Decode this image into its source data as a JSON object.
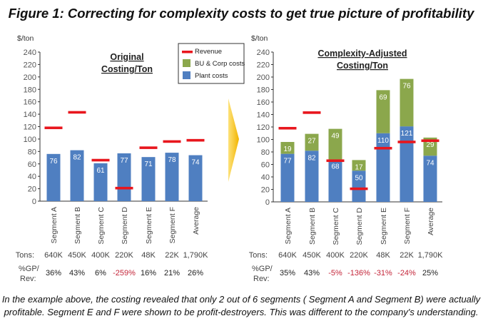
{
  "title": "Figure 1: Correcting for complexity costs to get true picture of profitability",
  "caption": [
    "In the example above, the costing revealed that only 2 out of 6 segments ( Segment A and Segment B) were actually",
    "profitable. Segment E and F were shown to be profit-destroyers. This was different to the company's understanding."
  ],
  "legend": {
    "revenue": "Revenue",
    "bu_corp": "BU & Corp costs",
    "plant": "Plant costs"
  },
  "row_labels": {
    "tons": "Tons:",
    "gp_line1": "%GP/",
    "gp_line2": "Rev:"
  },
  "colors": {
    "plant": "#4f7fc1",
    "bu_corp": "#8ba74c",
    "revenue": "#e8161d",
    "negative": "#c4263a",
    "arrow": "#f5b800"
  },
  "chart_data": [
    {
      "type": "bar",
      "title_lines": [
        "Original",
        "Costing/Ton"
      ],
      "ylabel": "$/ton",
      "ylim": [
        0,
        240
      ],
      "yticks": [
        "0",
        "20",
        "40",
        "60",
        "80",
        "100",
        "120",
        "140",
        "160",
        "180",
        "200",
        "220",
        "240"
      ],
      "categories": [
        "Segment A",
        "Segment B",
        "Segment C",
        "Segment D",
        "Segment E",
        "Segment F",
        "Average"
      ],
      "series": [
        {
          "name": "Plant costs",
          "values": [
            76,
            82,
            61,
            77,
            71,
            78,
            74
          ]
        },
        {
          "name": "Revenue",
          "values": [
            118,
            143,
            66,
            21,
            86,
            96,
            98
          ]
        }
      ],
      "value_labels": {
        "plant": [
          "76",
          "82",
          "61",
          "77",
          "71",
          "78",
          "74"
        ]
      },
      "tons": [
        "640K",
        "450K",
        "400K",
        "220K",
        "48K",
        "22K",
        "1,790K"
      ],
      "gp_rev": [
        "36%",
        "43%",
        "6%",
        "-259%",
        "16%",
        "21%",
        "26%"
      ]
    },
    {
      "type": "bar",
      "title_lines": [
        "Complexity-Adjusted",
        "Costing/Ton"
      ],
      "ylabel": "$/ton",
      "ylim": [
        0,
        240
      ],
      "yticks": [
        "0",
        "20",
        "40",
        "60",
        "80",
        "100",
        "120",
        "140",
        "160",
        "180",
        "200",
        "220",
        "240"
      ],
      "categories": [
        "Segment A",
        "Segment B",
        "Segment C",
        "Segment D",
        "Segment E",
        "Segment F",
        "Average"
      ],
      "series": [
        {
          "name": "Plant costs",
          "values": [
            77,
            82,
            68,
            50,
            110,
            121,
            74
          ]
        },
        {
          "name": "BU & Corp costs",
          "values": [
            19,
            27,
            49,
            17,
            69,
            76,
            29
          ]
        },
        {
          "name": "Revenue",
          "values": [
            118,
            143,
            66,
            21,
            86,
            96,
            98
          ]
        }
      ],
      "value_labels": {
        "plant": [
          "77",
          "82",
          "68",
          "50",
          "110",
          "121",
          "74"
        ],
        "bu": [
          "19",
          "27",
          "49",
          "17",
          "69",
          "76",
          "29"
        ]
      },
      "tons": [
        "640K",
        "450K",
        "400K",
        "220K",
        "48K",
        "22K",
        "1,790K"
      ],
      "gp_rev": [
        "35%",
        "43%",
        "-5%",
        "-136%",
        "-31%",
        "-24%",
        "25%"
      ]
    }
  ]
}
